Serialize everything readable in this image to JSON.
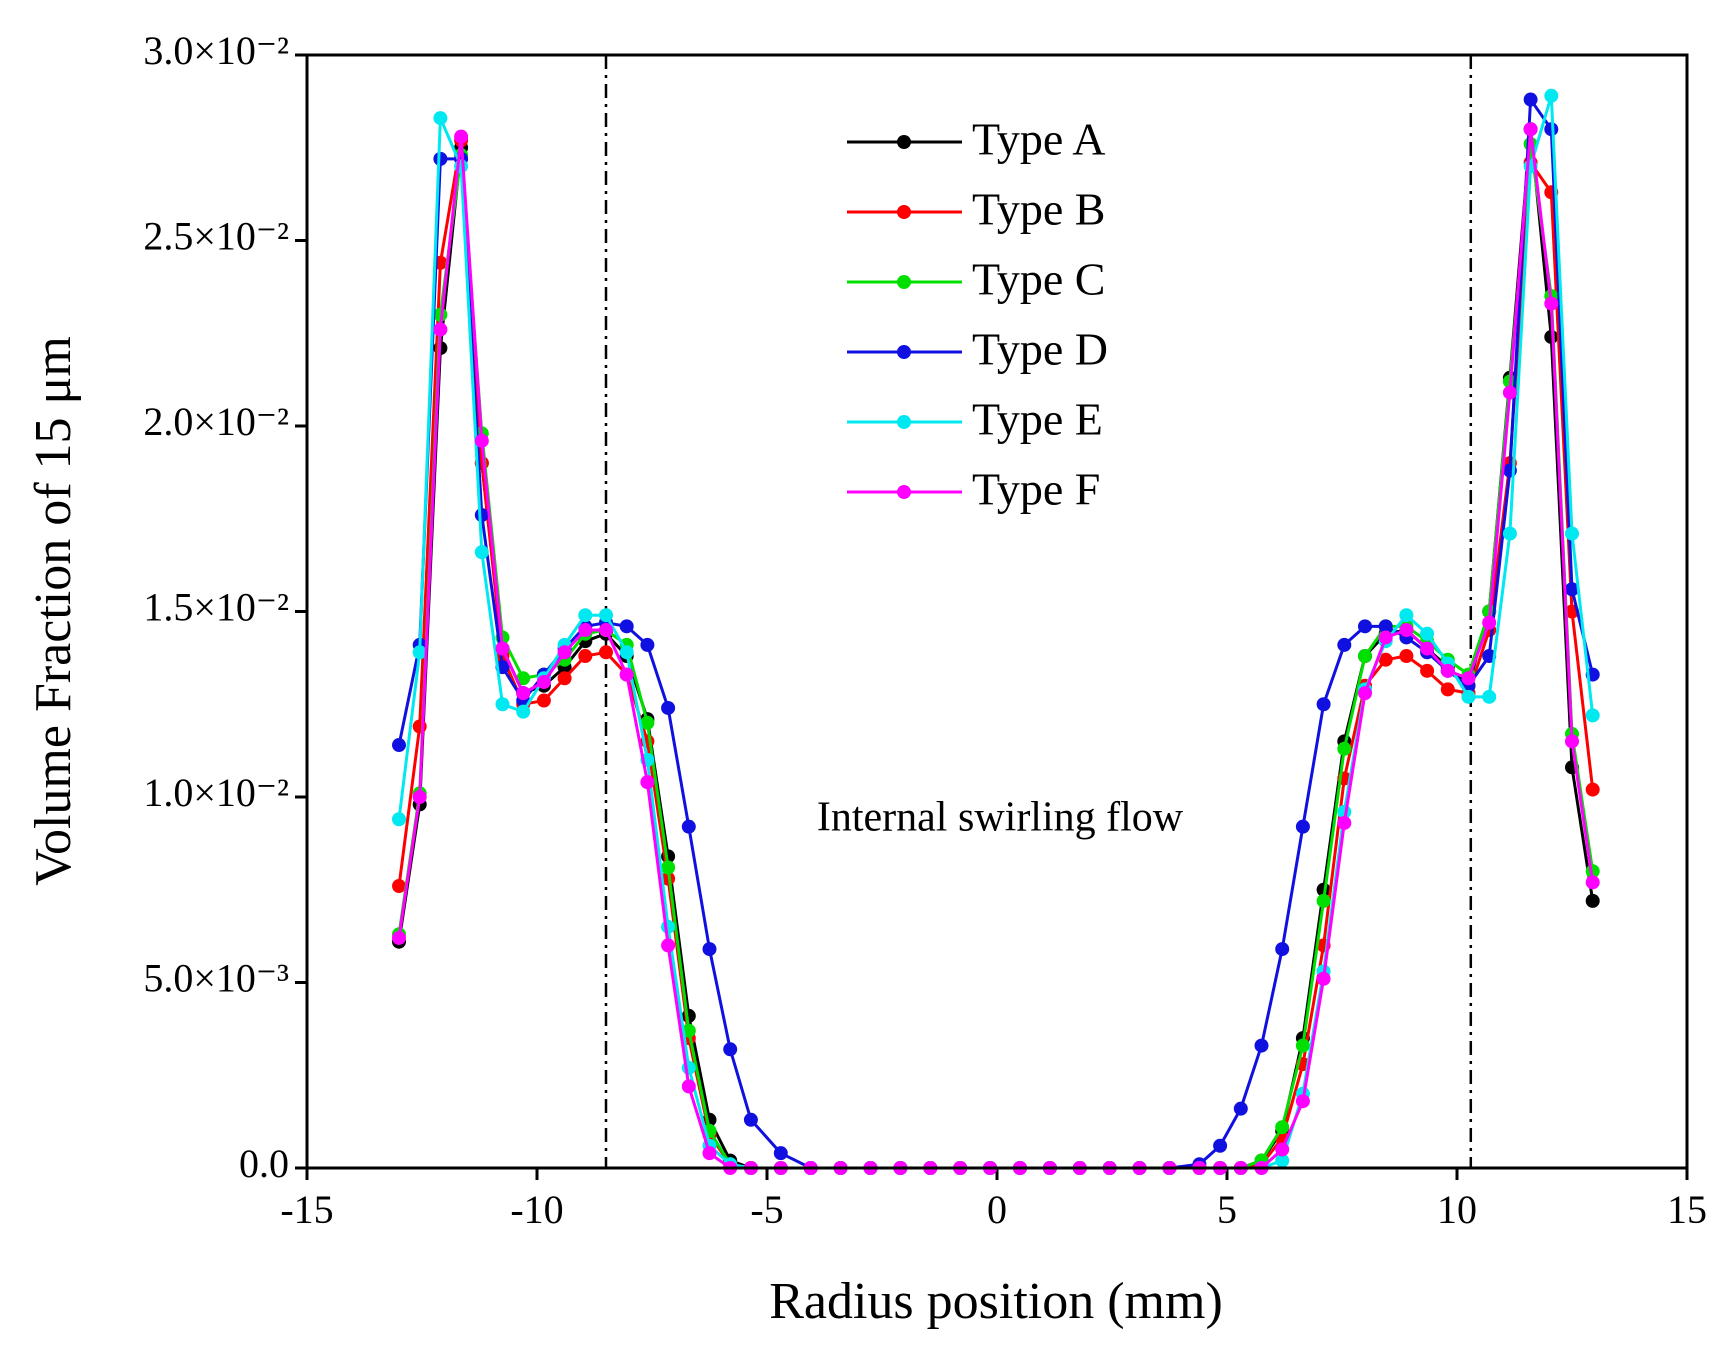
{
  "chart_data": {
    "type": "line",
    "xlabel": "Radius position (mm)",
    "ylabel": "Volume Fraction of 15 μm",
    "annotation": "Internal swirling flow",
    "xlim": [
      -15,
      15
    ],
    "xticks": [
      -15,
      -10,
      -5,
      0,
      5,
      10,
      15
    ],
    "ylim": [
      0,
      0.03
    ],
    "yticks": [
      {
        "value": 0,
        "label": "0.0"
      },
      {
        "value": 0.005,
        "label": "5.0×10⁻³"
      },
      {
        "value": 0.01,
        "label": "1.0×10⁻²"
      },
      {
        "value": 0.015,
        "label": "1.5×10⁻²"
      },
      {
        "value": 0.02,
        "label": "2.0×10⁻²"
      },
      {
        "value": 0.025,
        "label": "2.5×10⁻²"
      },
      {
        "value": 0.03,
        "label": "3.0×10⁻²"
      }
    ],
    "vlines": [
      -8.5,
      10.3
    ],
    "legend": "upper center",
    "x": [
      -13,
      -12.55,
      -12.1,
      -11.65,
      -11.2,
      -10.75,
      -10.3,
      -9.85,
      -9.4,
      -8.95,
      -8.5,
      -8.05,
      -7.6,
      -7.15,
      -6.7,
      -6.25,
      -5.8,
      -5.35,
      -4.7,
      -4.05,
      -3.4,
      -2.75,
      -2.1,
      -1.45,
      -0.8,
      -0.15,
      0.5,
      1.15,
      1.8,
      2.45,
      3.1,
      3.75,
      4.4,
      4.85,
      5.3,
      5.75,
      6.2,
      6.65,
      7.1,
      7.55,
      8.0,
      8.45,
      8.9,
      9.35,
      9.8,
      10.25,
      10.7,
      11.15,
      11.6,
      12.05,
      12.5,
      12.95
    ],
    "series": [
      {
        "name": "Type A",
        "color": "#000000",
        "values": [
          0.0061,
          0.0098,
          0.0221,
          0.0275,
          0.019,
          0.014,
          0.0128,
          0.013,
          0.0135,
          0.0142,
          0.0144,
          0.0138,
          0.0121,
          0.0084,
          0.0041,
          0.0013,
          0.0002,
          0,
          0,
          0,
          0,
          0,
          0,
          0,
          0,
          0,
          0,
          0,
          0,
          0,
          0,
          0,
          0,
          0,
          0,
          0.0002,
          0.001,
          0.0035,
          0.0075,
          0.0115,
          0.0138,
          0.0144,
          0.0145,
          0.014,
          0.0135,
          0.013,
          0.015,
          0.0213,
          0.028,
          0.0224,
          0.0108,
          0.0072
        ]
      },
      {
        "name": "Type B",
        "color": "#ff0000",
        "values": [
          0.0076,
          0.0119,
          0.0244,
          0.0277,
          0.019,
          0.0138,
          0.0125,
          0.0126,
          0.0132,
          0.0138,
          0.0139,
          0.0133,
          0.0115,
          0.0078,
          0.0035,
          0.0009,
          0.0001,
          0,
          0,
          0,
          0,
          0,
          0,
          0,
          0,
          0,
          0,
          0,
          0,
          0,
          0,
          0,
          0,
          0,
          0,
          0.0001,
          0.0008,
          0.0028,
          0.006,
          0.0105,
          0.013,
          0.0137,
          0.0138,
          0.0134,
          0.0129,
          0.0128,
          0.0145,
          0.019,
          0.0271,
          0.0263,
          0.015,
          0.0102
        ]
      },
      {
        "name": "Type C",
        "color": "#00e000",
        "values": [
          0.0063,
          0.0101,
          0.023,
          0.0273,
          0.0198,
          0.0143,
          0.0132,
          0.0133,
          0.0137,
          0.0144,
          0.0145,
          0.0141,
          0.012,
          0.0081,
          0.0037,
          0.001,
          0.0001,
          0,
          0,
          0,
          0,
          0,
          0,
          0,
          0,
          0,
          0,
          0,
          0,
          0,
          0,
          0,
          0,
          0,
          0,
          0.0002,
          0.0011,
          0.0033,
          0.0072,
          0.0113,
          0.0138,
          0.0146,
          0.0146,
          0.0142,
          0.0137,
          0.0133,
          0.015,
          0.0212,
          0.0276,
          0.0235,
          0.0117,
          0.008
        ]
      },
      {
        "name": "Type D",
        "color": "#1010e0",
        "values": [
          0.0114,
          0.0141,
          0.0272,
          0.0272,
          0.0176,
          0.0135,
          0.0126,
          0.0133,
          0.014,
          0.0146,
          0.0147,
          0.0146,
          0.0141,
          0.0124,
          0.0092,
          0.0059,
          0.0032,
          0.0013,
          0.0004,
          0,
          0,
          0,
          0,
          0,
          0,
          0,
          0,
          0,
          0,
          0,
          0,
          0,
          0.0001,
          0.0006,
          0.0016,
          0.0033,
          0.0059,
          0.0092,
          0.0125,
          0.0141,
          0.0146,
          0.0146,
          0.0143,
          0.0139,
          0.0134,
          0.013,
          0.0138,
          0.0188,
          0.0288,
          0.028,
          0.0156,
          0.0133
        ]
      },
      {
        "name": "Type E",
        "color": "#00e8f0",
        "values": [
          0.0094,
          0.0139,
          0.0283,
          0.027,
          0.0166,
          0.0125,
          0.0123,
          0.0132,
          0.0141,
          0.0149,
          0.0149,
          0.0139,
          0.011,
          0.0065,
          0.0027,
          0.0006,
          0.0001,
          0,
          0,
          0,
          0,
          0,
          0,
          0,
          0,
          0,
          0,
          0,
          0,
          0,
          0,
          0,
          0,
          0,
          0,
          0,
          0.0002,
          0.002,
          0.0053,
          0.0096,
          0.0129,
          0.0142,
          0.0149,
          0.0144,
          0.0136,
          0.0127,
          0.0127,
          0.0171,
          0.027,
          0.0289,
          0.0171,
          0.0122
        ]
      },
      {
        "name": "Type F",
        "color": "#ff00ff",
        "values": [
          0.0062,
          0.01,
          0.0226,
          0.0278,
          0.0196,
          0.014,
          0.0128,
          0.0131,
          0.0139,
          0.0145,
          0.0145,
          0.0133,
          0.0104,
          0.006,
          0.0022,
          0.0004,
          0,
          0,
          0,
          0,
          0,
          0,
          0,
          0,
          0,
          0,
          0,
          0,
          0,
          0,
          0,
          0,
          0,
          0,
          0,
          0,
          0.0005,
          0.0018,
          0.0051,
          0.0093,
          0.0128,
          0.0143,
          0.0145,
          0.014,
          0.0134,
          0.0132,
          0.0147,
          0.0209,
          0.028,
          0.0233,
          0.0115,
          0.0077
        ]
      }
    ]
  }
}
